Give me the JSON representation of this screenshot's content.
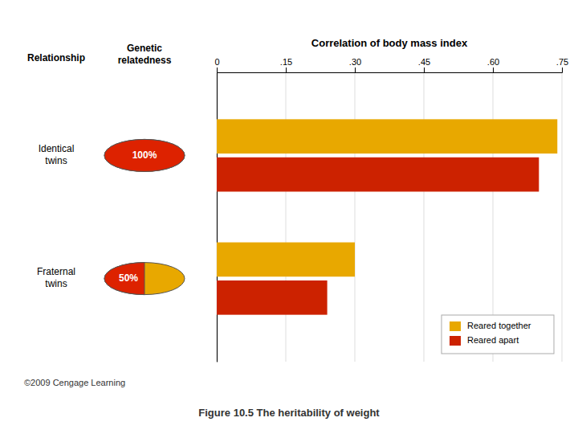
{
  "chart_data": {
    "type": "bar",
    "orientation": "horizontal",
    "title": "Figure 10.5  The heritability of weight",
    "xlabel": "Correlation of body mass index",
    "ylabel": "Relationship",
    "categories": [
      "Identical\ntwins",
      "Fraternal\ntwins"
    ],
    "series": [
      {
        "name": "Reared together",
        "color": "#E8A800",
        "values": [
          0.74,
          0.3
        ]
      },
      {
        "name": "Reared apart",
        "color": "#CC2200",
        "values": [
          0.7,
          0.24
        ]
      }
    ],
    "xlim": [
      0,
      0.75
    ],
    "xticks": [
      0,
      {
        "value": 0.15,
        "label": ".15"
      },
      {
        "value": 0.3,
        "label": ".30"
      },
      {
        "value": 0.45,
        "label": ".45"
      },
      {
        "value": 0.6,
        "label": ".60"
      },
      {
        "value": 0.75,
        "label": ".75"
      }
    ],
    "grid": true,
    "legend": "lower right",
    "relatedness": {
      "label": "Genetic\nrelatedness",
      "values": [
        100,
        50
      ],
      "value_labels": [
        "100%",
        "50%"
      ],
      "colors": [
        "#DD2200",
        "#E8A800"
      ]
    },
    "annotations": [
      "©2009 Cengage Learning"
    ]
  }
}
